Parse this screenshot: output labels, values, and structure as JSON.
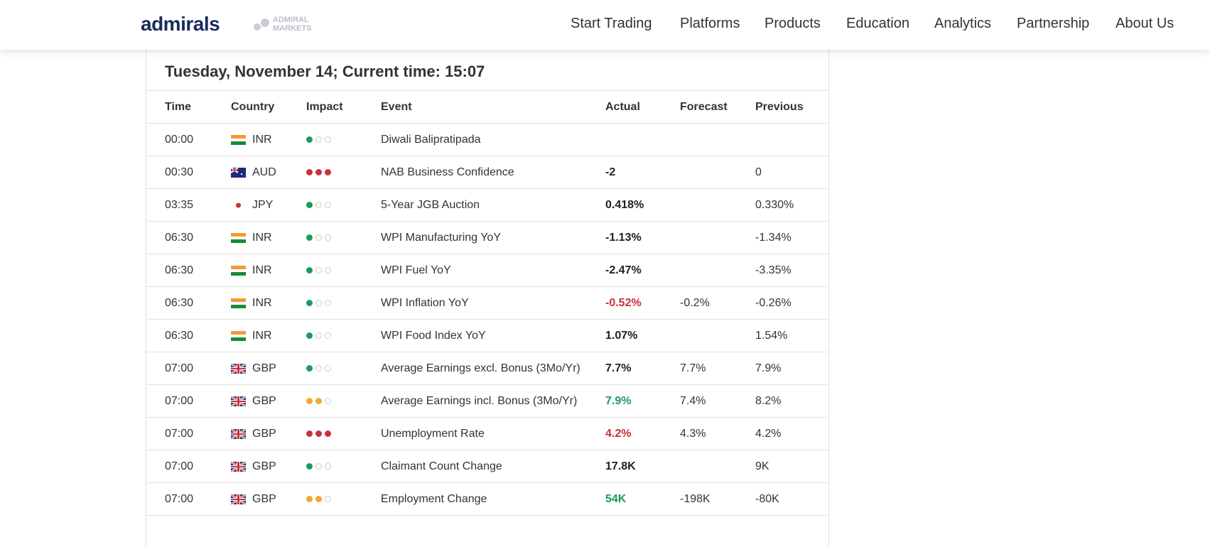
{
  "header": {
    "logo": "admirals",
    "sub_logo": [
      "ADMIRAL",
      "MARKETS"
    ],
    "nav": [
      "Start Trading",
      "Platforms",
      "Products",
      "Education",
      "Analytics",
      "Partnership",
      "About Us"
    ]
  },
  "table": {
    "title": "Tuesday, November 14; Current time: 15:07",
    "columns": [
      "Time",
      "Country",
      "Impact",
      "Event",
      "Actual",
      "Forecast",
      "Previous"
    ],
    "impact_colors": {
      "1": "#1a9c5b",
      "2": "#f0a830",
      "3": "#c8313a"
    },
    "rows": [
      {
        "time": "00:00",
        "country": "INR",
        "impact": 1,
        "event": "Diwali Balipratipada",
        "actual": null,
        "forecast": null,
        "previous": null
      },
      {
        "time": "00:30",
        "country": "AUD",
        "impact": 3,
        "event": "NAB Business Confidence",
        "actual": "-2",
        "actual_color": "#222222",
        "forecast": null,
        "previous": "0"
      },
      {
        "time": "03:35",
        "country": "JPY",
        "impact": 1,
        "event": "5-Year JGB Auction",
        "actual": "0.418%",
        "actual_color": "#222222",
        "forecast": null,
        "previous": "0.330%"
      },
      {
        "time": "06:30",
        "country": "INR",
        "impact": 1,
        "event": "WPI Manufacturing YoY",
        "actual": "-1.13%",
        "actual_color": "#222222",
        "forecast": null,
        "previous": "-1.34%"
      },
      {
        "time": "06:30",
        "country": "INR",
        "impact": 1,
        "event": "WPI Fuel YoY",
        "actual": "-2.47%",
        "actual_color": "#222222",
        "forecast": null,
        "previous": "-3.35%"
      },
      {
        "time": "06:30",
        "country": "INR",
        "impact": 1,
        "event": "WPI Inflation YoY",
        "actual": "-0.52%",
        "actual_color": "#c8313a",
        "forecast": "-0.2%",
        "previous": "-0.26%"
      },
      {
        "time": "06:30",
        "country": "INR",
        "impact": 1,
        "event": "WPI Food Index YoY",
        "actual": "1.07%",
        "actual_color": "#222222",
        "forecast": null,
        "previous": "1.54%"
      },
      {
        "time": "07:00",
        "country": "GBP",
        "impact": 1,
        "event": "Average Earnings excl. Bonus (3Mo/Yr)",
        "actual": "7.7%",
        "actual_color": "#222222",
        "forecast": "7.7%",
        "previous": "7.9%"
      },
      {
        "time": "07:00",
        "country": "GBP",
        "impact": 2,
        "event": "Average Earnings incl. Bonus (3Mo/Yr)",
        "actual": "7.9%",
        "actual_color": "#1a9c5b",
        "forecast": "7.4%",
        "previous": "8.2%"
      },
      {
        "time": "07:00",
        "country": "GBP",
        "impact": 3,
        "event": "Unemployment Rate",
        "actual": "4.2%",
        "actual_color": "#c8313a",
        "forecast": "4.3%",
        "previous": "4.2%"
      },
      {
        "time": "07:00",
        "country": "GBP",
        "impact": 1,
        "event": "Claimant Count Change",
        "actual": "17.8K",
        "actual_color": "#222222",
        "forecast": null,
        "previous": "9K"
      },
      {
        "time": "07:00",
        "country": "GBP",
        "impact": 2,
        "event": "Employment Change",
        "actual": "54K",
        "actual_color": "#1a9c5b",
        "forecast": "-198K",
        "previous": "-80K"
      }
    ]
  }
}
